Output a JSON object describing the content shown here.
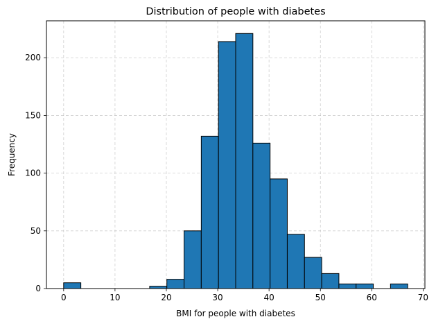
{
  "chart_data": {
    "type": "histogram",
    "title": "Distribution of people with diabetes",
    "xlabel": "BMI for people with diabetes",
    "ylabel": "Frequency",
    "xlim": [
      -3.35,
      70.35
    ],
    "ylim": [
      0,
      232
    ],
    "xticks": [
      0,
      10,
      20,
      30,
      40,
      50,
      60,
      70
    ],
    "yticks": [
      0,
      50,
      100,
      150,
      200
    ],
    "grid": true,
    "bar_color": "#1f77b4",
    "edge_color": "#000000",
    "bins": [
      {
        "x0": 0.0,
        "x1": 3.35,
        "count": 5
      },
      {
        "x0": 3.35,
        "x1": 6.7,
        "count": 0
      },
      {
        "x0": 6.7,
        "x1": 10.05,
        "count": 0
      },
      {
        "x0": 10.05,
        "x1": 13.4,
        "count": 0
      },
      {
        "x0": 13.4,
        "x1": 16.75,
        "count": 0
      },
      {
        "x0": 16.75,
        "x1": 20.1,
        "count": 2
      },
      {
        "x0": 20.1,
        "x1": 23.45,
        "count": 8
      },
      {
        "x0": 23.45,
        "x1": 26.8,
        "count": 50
      },
      {
        "x0": 26.8,
        "x1": 30.15,
        "count": 132
      },
      {
        "x0": 30.15,
        "x1": 33.5,
        "count": 214
      },
      {
        "x0": 33.5,
        "x1": 36.85,
        "count": 221
      },
      {
        "x0": 36.85,
        "x1": 40.2,
        "count": 126
      },
      {
        "x0": 40.2,
        "x1": 43.55,
        "count": 95
      },
      {
        "x0": 43.55,
        "x1": 46.9,
        "count": 47
      },
      {
        "x0": 46.9,
        "x1": 50.25,
        "count": 27
      },
      {
        "x0": 50.25,
        "x1": 53.6,
        "count": 13
      },
      {
        "x0": 53.6,
        "x1": 56.95,
        "count": 4
      },
      {
        "x0": 56.95,
        "x1": 60.3,
        "count": 4
      },
      {
        "x0": 60.3,
        "x1": 63.65,
        "count": 0
      },
      {
        "x0": 63.65,
        "x1": 67.0,
        "count": 4
      }
    ]
  }
}
